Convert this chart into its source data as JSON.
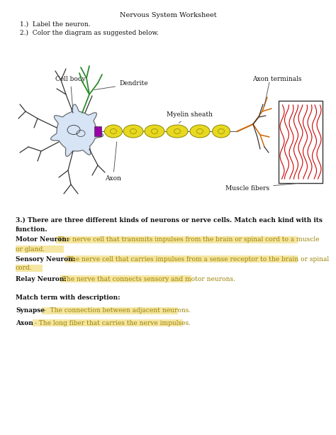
{
  "title": "Nervous System Worksheet",
  "inst1": "1.)  Label the neuron.",
  "inst2": "2.)  Color the diagram as suggested below.",
  "q3_line1": "3.) There are three different kinds of neurons or nerve cells. Match each kind with its",
  "q3_line2": "function.",
  "motor_bold": "Motor Neuron:",
  "motor_text": " The nerve cell that transmits impulses from the brain or spinal cord to a muscle",
  "motor_text2": "or gland.",
  "sensory_bold": "Sensory Neuron:",
  "sensory_text": " The nerve cell that carries impulses from a sense receptor to the brain or spinal",
  "sensory_text2": "cord.",
  "relay_bold": "Relay Neuron:",
  "relay_text": " The nerve that connects sensory and motor neurons.",
  "match_header": "Match term with description:",
  "synapse_bold": "Synapse",
  "synapse_text": " -  The connection between adjacent neurons.",
  "axon_bold": "Axon",
  "axon_text": " - The long fiber that carries the nerve impulses.",
  "highlight_color": "#F5E6A3",
  "text_color": "#9B8000",
  "bg_color": "#ffffff",
  "label_cell_body": "Cell body",
  "label_dendrite": "Dendrite",
  "label_axon": "Axon",
  "label_myelin": "Myelin sheath",
  "label_axon_term": "Axon terminals",
  "label_muscle": "Muscle fibers"
}
